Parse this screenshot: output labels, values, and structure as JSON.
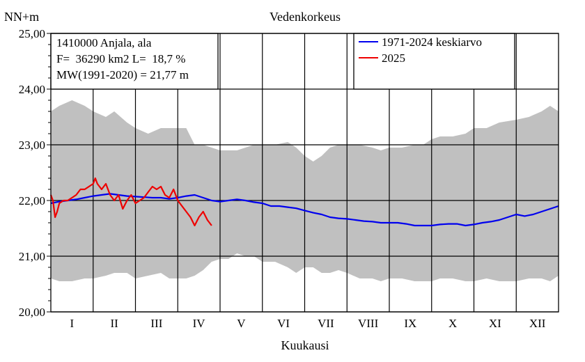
{
  "chart_data": {
    "type": "line",
    "title": "Vedenkorkeus",
    "ylabel": "NN+m",
    "xlabel": "Kuukausi",
    "ylim": [
      20.0,
      25.0
    ],
    "yticks": [
      "20,00",
      "21,00",
      "22,00",
      "23,00",
      "24,00",
      "25,00"
    ],
    "months": [
      "I",
      "II",
      "III",
      "IV",
      "V",
      "VI",
      "VII",
      "VIII",
      "IX",
      "X",
      "XI",
      "XII"
    ],
    "grid": true,
    "legend_position": "top-right",
    "info": {
      "station": "1410000 Anjala, ala",
      "area": "F=  36290 km2 L=  18,7 %",
      "mean_level": "MW(1991-2020) = 21,77 m"
    },
    "range_band": {
      "color": "#c0c0c0",
      "x_month": [
        0,
        0.2,
        0.5,
        0.8,
        1.0,
        1.3,
        1.5,
        1.8,
        2.0,
        2.3,
        2.6,
        2.8,
        3.0,
        3.2,
        3.4,
        3.6,
        3.8,
        4.0,
        4.2,
        4.4,
        4.6,
        4.8,
        5.0,
        5.3,
        5.6,
        5.8,
        6.0,
        6.2,
        6.4,
        6.6,
        6.8,
        7.0,
        7.3,
        7.6,
        7.8,
        8.0,
        8.3,
        8.6,
        8.8,
        9.0,
        9.2,
        9.5,
        9.8,
        10.0,
        10.3,
        10.6,
        11.0,
        11.3,
        11.6,
        11.8,
        12.0
      ],
      "max": [
        23.6,
        23.7,
        23.8,
        23.7,
        23.6,
        23.5,
        23.6,
        23.4,
        23.3,
        23.2,
        23.3,
        23.3,
        23.3,
        23.3,
        23.0,
        23.0,
        22.95,
        22.9,
        22.9,
        22.9,
        22.95,
        23.0,
        23.0,
        23.0,
        23.05,
        22.95,
        22.8,
        22.7,
        22.8,
        22.95,
        23.0,
        23.0,
        23.0,
        22.95,
        22.9,
        22.95,
        22.95,
        23.0,
        23.0,
        23.1,
        23.15,
        23.15,
        23.2,
        23.3,
        23.3,
        23.4,
        23.45,
        23.5,
        23.6,
        23.7,
        23.6
      ],
      "min": [
        20.6,
        20.55,
        20.55,
        20.6,
        20.6,
        20.65,
        20.7,
        20.7,
        20.6,
        20.65,
        20.7,
        20.6,
        20.6,
        20.6,
        20.65,
        20.75,
        20.9,
        20.95,
        20.95,
        21.05,
        21.0,
        21.0,
        20.9,
        20.9,
        20.8,
        20.7,
        20.8,
        20.8,
        20.7,
        20.7,
        20.75,
        20.7,
        20.6,
        20.6,
        20.55,
        20.6,
        20.6,
        20.55,
        20.55,
        20.55,
        20.6,
        20.6,
        20.55,
        20.55,
        20.6,
        20.55,
        20.55,
        20.6,
        20.6,
        20.55,
        20.65
      ]
    },
    "series": [
      {
        "name": "1971-2024 keskiarvo",
        "color": "#0000ee",
        "x_month": [
          0,
          0.2,
          0.4,
          0.6,
          0.8,
          1.0,
          1.2,
          1.4,
          1.6,
          1.8,
          2.0,
          2.2,
          2.4,
          2.6,
          2.8,
          3.0,
          3.2,
          3.4,
          3.6,
          3.8,
          4.0,
          4.2,
          4.4,
          4.6,
          4.8,
          5.0,
          5.2,
          5.4,
          5.6,
          5.8,
          6.0,
          6.2,
          6.4,
          6.6,
          6.8,
          7.0,
          7.2,
          7.4,
          7.6,
          7.8,
          8.0,
          8.2,
          8.4,
          8.6,
          8.8,
          9.0,
          9.2,
          9.4,
          9.6,
          9.8,
          10.0,
          10.2,
          10.4,
          10.6,
          10.8,
          11.0,
          11.2,
          11.4,
          11.6,
          11.8,
          12.0
        ],
        "values": [
          21.95,
          21.98,
          22.0,
          22.02,
          22.05,
          22.08,
          22.1,
          22.12,
          22.1,
          22.08,
          22.07,
          22.06,
          22.05,
          22.05,
          22.03,
          22.05,
          22.08,
          22.1,
          22.05,
          22.0,
          21.98,
          22.0,
          22.02,
          22.0,
          21.97,
          21.95,
          21.9,
          21.9,
          21.88,
          21.86,
          21.82,
          21.78,
          21.75,
          21.7,
          21.68,
          21.67,
          21.65,
          21.63,
          21.62,
          21.6,
          21.6,
          21.6,
          21.58,
          21.55,
          21.55,
          21.55,
          21.57,
          21.58,
          21.58,
          21.55,
          21.57,
          21.6,
          21.62,
          21.65,
          21.7,
          21.75,
          21.72,
          21.75,
          21.8,
          21.85,
          21.9
        ]
      },
      {
        "name": "2025",
        "color": "#ee0000",
        "x_month": [
          0,
          0.05,
          0.1,
          0.15,
          0.2,
          0.3,
          0.4,
          0.5,
          0.6,
          0.7,
          0.8,
          0.9,
          1.0,
          1.05,
          1.1,
          1.2,
          1.3,
          1.4,
          1.5,
          1.6,
          1.7,
          1.8,
          1.9,
          2.0,
          2.1,
          2.2,
          2.3,
          2.4,
          2.5,
          2.6,
          2.7,
          2.8,
          2.9,
          3.0,
          3.1,
          3.2,
          3.3,
          3.4,
          3.5,
          3.6,
          3.7,
          3.8
        ],
        "values": [
          22.1,
          22.0,
          21.7,
          21.8,
          21.95,
          22.0,
          22.0,
          22.05,
          22.1,
          22.2,
          22.2,
          22.25,
          22.3,
          22.4,
          22.3,
          22.2,
          22.3,
          22.1,
          22.0,
          22.1,
          21.85,
          22.0,
          22.1,
          21.95,
          22.0,
          22.05,
          22.15,
          22.25,
          22.2,
          22.25,
          22.1,
          22.05,
          22.2,
          22.0,
          21.9,
          21.8,
          21.7,
          21.55,
          21.7,
          21.8,
          21.65,
          21.55
        ]
      }
    ]
  }
}
